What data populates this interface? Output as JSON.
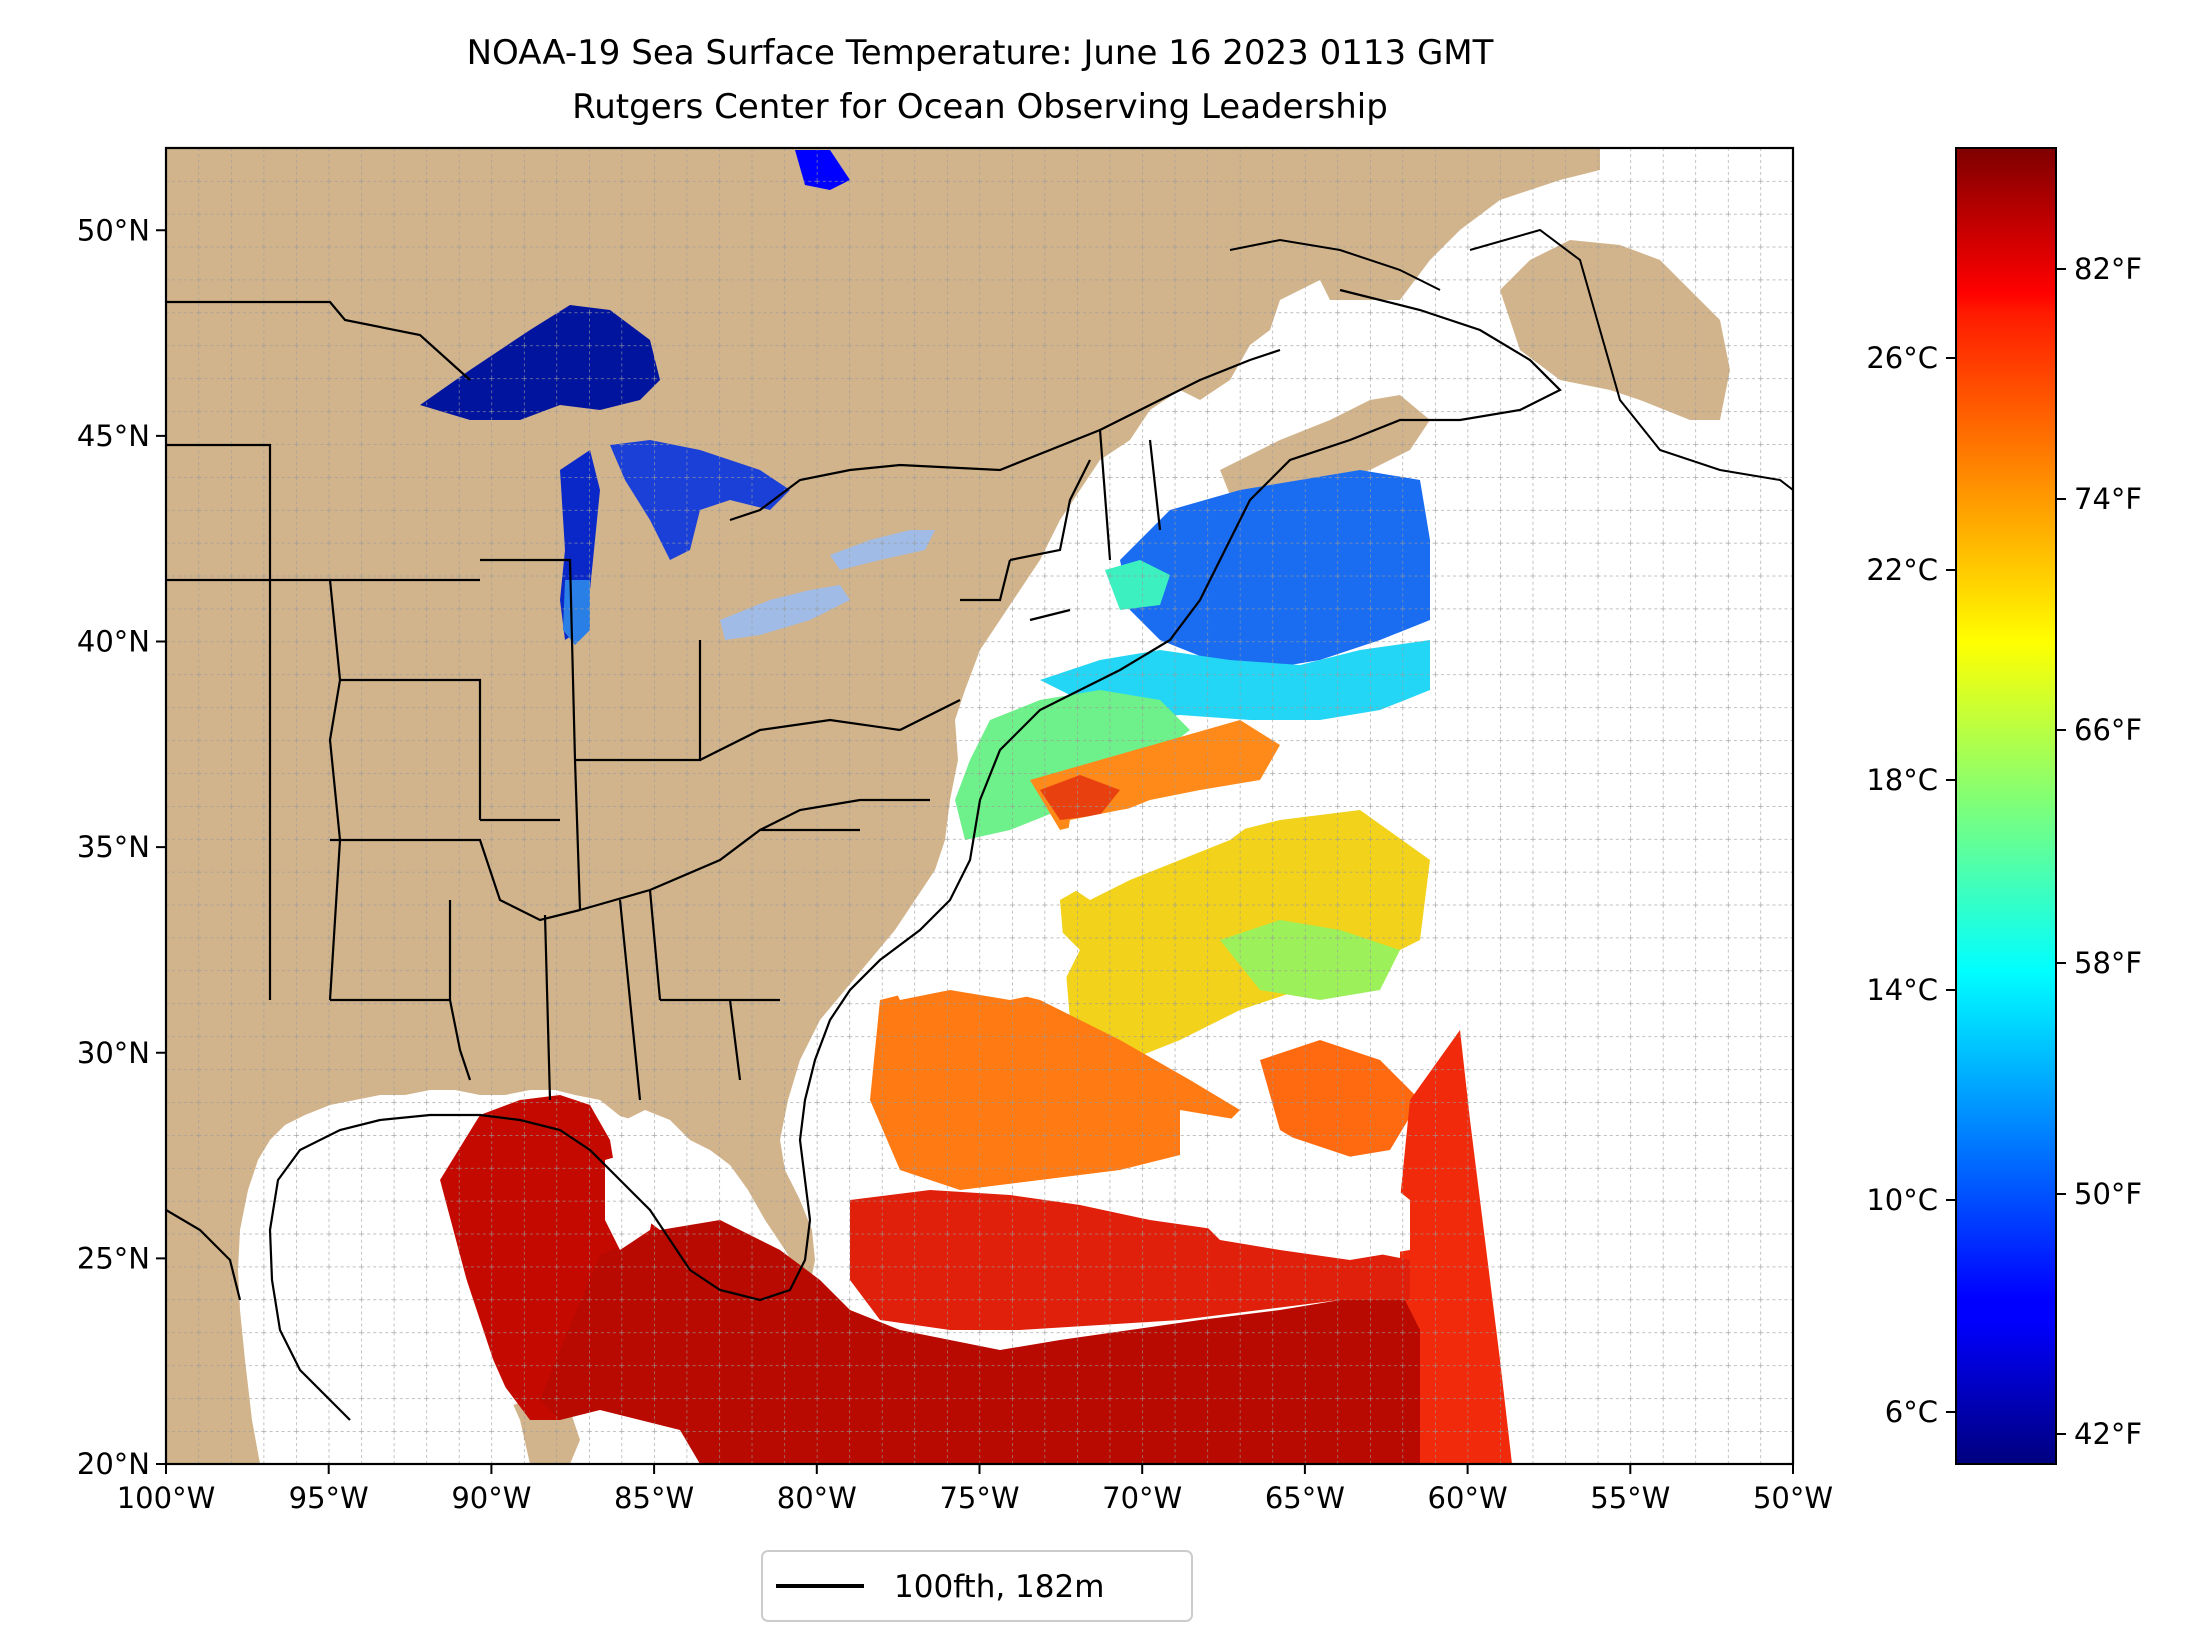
{
  "title": {
    "line1": "NOAA-19 Sea Surface Temperature: June 16 2023 0113 GMT",
    "line2": "Rutgers Center for Ocean Observing Leadership"
  },
  "map": {
    "lon_range": [
      -100,
      -50
    ],
    "lat_range": [
      20,
      52
    ],
    "lon_tick_labels": [
      "100°W",
      "95°W",
      "90°W",
      "85°W",
      "80°W",
      "75°W",
      "70°W",
      "65°W",
      "60°W",
      "55°W",
      "50°W"
    ],
    "lat_tick_labels": [
      "20°N",
      "25°N",
      "30°N",
      "35°N",
      "40°N",
      "45°N",
      "50°N"
    ],
    "gridlines": true,
    "land_color": "#d2b48c",
    "lake_color": "#9fbbe6",
    "cloud_no_data_color": "#ffffff",
    "contour_color": "#000000"
  },
  "colorbar": {
    "colormap": "jet",
    "celsius_labels": [
      "26°C",
      "22°C",
      "18°C",
      "14°C",
      "10°C",
      "6°C"
    ],
    "fahrenheit_labels": [
      "82°F",
      "74°F",
      "66°F",
      "58°F",
      "50°F",
      "42°F"
    ]
  },
  "legend": {
    "label": "100fth, 182m"
  }
}
